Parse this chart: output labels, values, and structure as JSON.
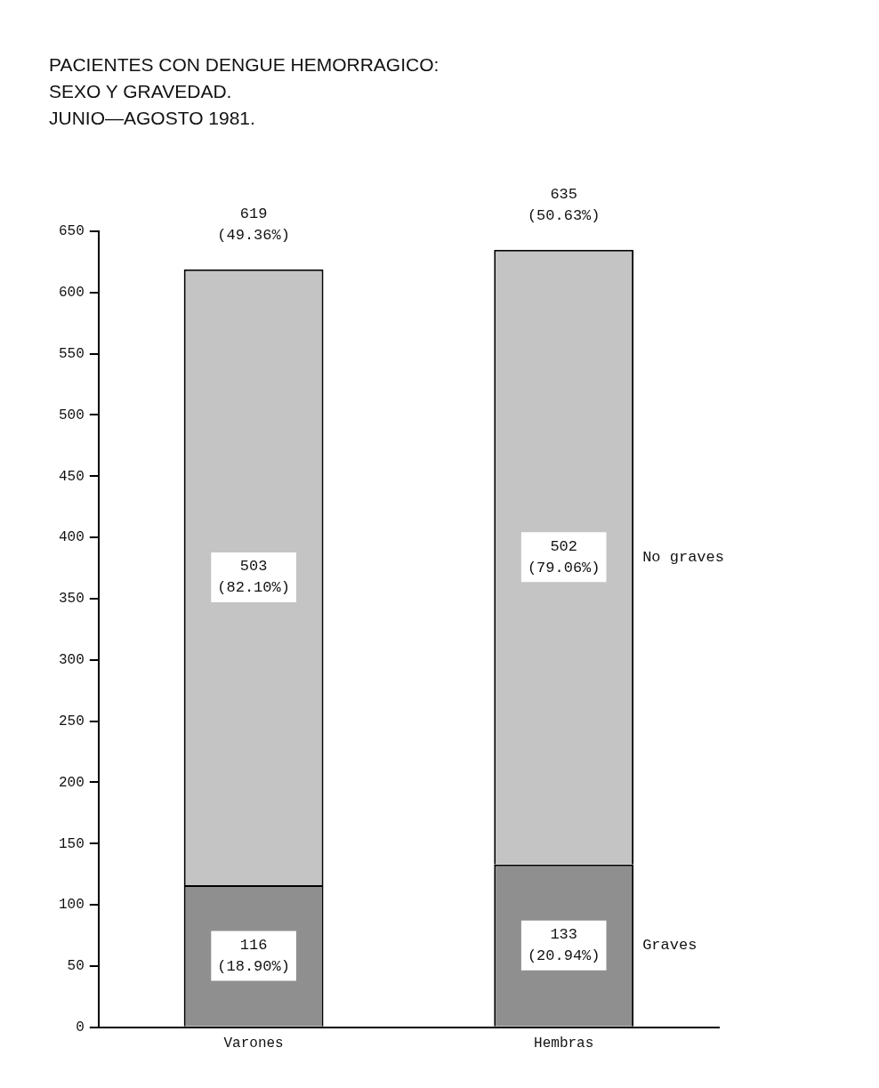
{
  "chart_data": {
    "type": "bar",
    "title": "PACIENTES CON DENGUE HEMORRAGICO:\nSEXO Y GRAVEDAD.\nJUNIO—AGOSTO 1981.",
    "categories": [
      "Varones",
      "Hembras"
    ],
    "stacked": true,
    "series": [
      {
        "name": "Graves",
        "color": "#8f8f8f",
        "values": [
          116,
          133
        ],
        "value_labels": [
          "116\n(18.90%)",
          "133\n(20.94%)"
        ]
      },
      {
        "name": "No graves",
        "color": "#c4c4c4",
        "values": [
          503,
          502
        ],
        "value_labels": [
          "503\n(82.10%)",
          "502\n(79.06%)"
        ]
      }
    ],
    "totals": [
      "619\n(49.36%)",
      "635\n(50.63%)"
    ],
    "ylim": [
      0,
      650
    ],
    "yticks": [
      0,
      50,
      100,
      150,
      200,
      250,
      300,
      350,
      400,
      450,
      500,
      550,
      600,
      650
    ],
    "grid": false
  }
}
